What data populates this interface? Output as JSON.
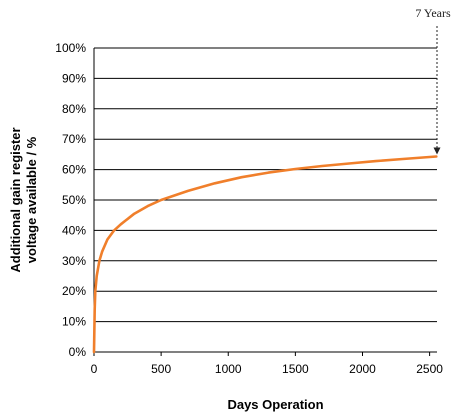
{
  "chart_data": {
    "type": "line",
    "title": "",
    "xlabel": "Days Operation",
    "ylabel_lines": [
      "Additional gain register",
      "voltage available / %"
    ],
    "xlim": [
      0,
      2555
    ],
    "ylim": [
      0,
      100
    ],
    "x_ticks": [
      0,
      500,
      1000,
      1500,
      2000,
      2500
    ],
    "x_tick_labels": [
      "0",
      "500",
      "1000",
      "1500",
      "2000",
      "2500"
    ],
    "y_ticks": [
      0,
      10,
      20,
      30,
      40,
      50,
      60,
      70,
      80,
      90,
      100
    ],
    "y_tick_labels": [
      "0%",
      "10%",
      "20%",
      "30%",
      "40%",
      "50%",
      "60%",
      "70%",
      "80%",
      "90%",
      "100%"
    ],
    "grid": "horizontal",
    "line_color": "#F07F2B",
    "series": [
      {
        "x": [
          0,
          5,
          10,
          20,
          40,
          60,
          100,
          150,
          200,
          300,
          400,
          500,
          700,
          900,
          1100,
          1300,
          1500,
          1700,
          1900,
          2100,
          2300,
          2550
        ],
        "y": [
          0,
          14,
          20,
          25,
          30,
          33,
          37,
          40,
          42,
          45.5,
          48,
          50,
          53,
          55.5,
          57.5,
          59,
          60.2,
          61.2,
          62,
          62.8,
          63.5,
          64.3
        ]
      }
    ],
    "annotations": [
      {
        "text": "7 Years",
        "x": 2555,
        "y": 64.3
      }
    ]
  }
}
